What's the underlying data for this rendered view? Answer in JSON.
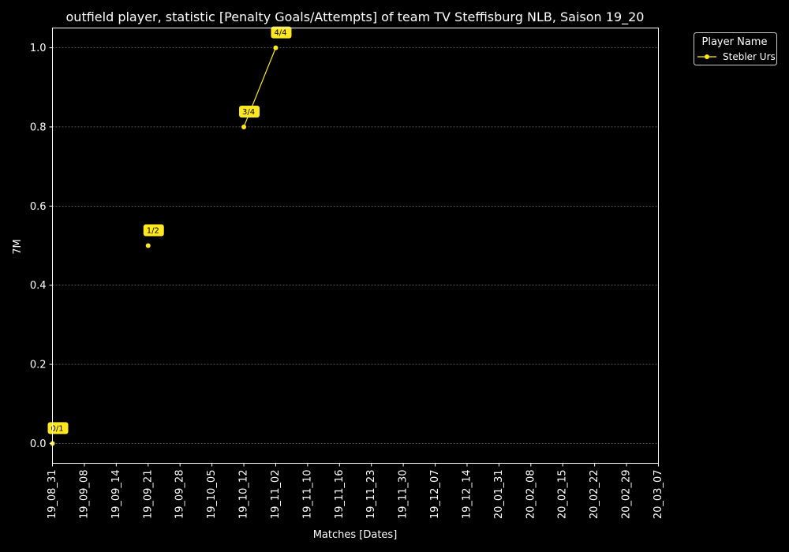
{
  "chart_data": {
    "type": "line",
    "title": "outfield player, statistic [Penalty Goals/Attempts] of team TV Steffisburg NLB, Saison 19_20",
    "xlabel": "Matches [Dates]",
    "ylabel": "7M",
    "x_ticks": [
      "19_08_31",
      "19_09_08",
      "19_09_14",
      "19_09_21",
      "19_09_28",
      "19_10_05",
      "19_10_12",
      "19_11_02",
      "19_11_10",
      "19_11_16",
      "19_11_23",
      "19_11_30",
      "19_12_07",
      "19_12_14",
      "20_01_31",
      "20_02_08",
      "20_02_15",
      "20_02_22",
      "20_02_29",
      "20_03_07"
    ],
    "y_ticks": [
      "0.0",
      "0.2",
      "0.4",
      "0.6",
      "0.8",
      "1.0"
    ],
    "ylim": [
      -0.05,
      1.05
    ],
    "grid": "horizontal dotted",
    "legend": {
      "title": "Player Name",
      "placement": "upper right, outside plot"
    },
    "series": [
      {
        "name": "Stebler Urs",
        "color": "#ffe81f",
        "points": [
          {
            "x": "19_08_31",
            "y": 0.0,
            "label": "0/1"
          },
          {
            "x": "19_09_21",
            "y": 0.5,
            "label": "1/2"
          },
          {
            "x": "19_10_12",
            "y": 0.8,
            "label": "3/4"
          },
          {
            "x": "19_11_02",
            "y": 1.0,
            "label": "4/4"
          }
        ]
      }
    ]
  },
  "colors": {
    "background": "#000000",
    "foreground": "#ffffff",
    "series": "#ffe81f",
    "grid": "#888888"
  }
}
